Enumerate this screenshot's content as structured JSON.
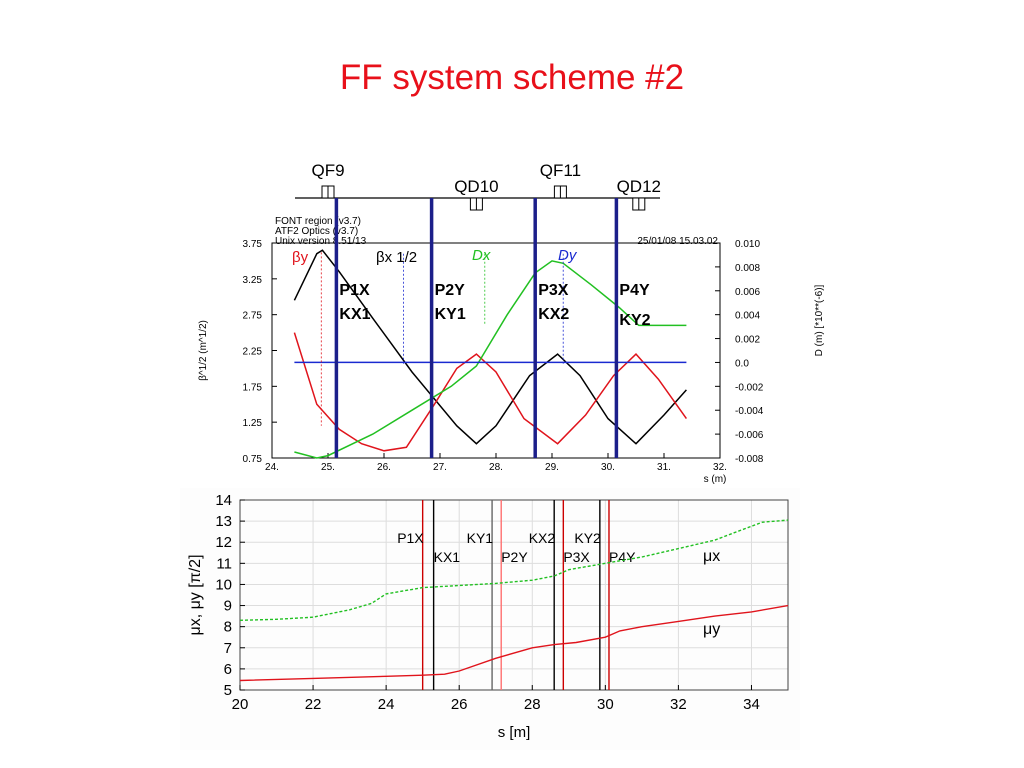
{
  "slide": {
    "title": "FF system scheme #2"
  },
  "chart_data": [
    {
      "type": "line",
      "magnets": [
        {
          "name": "QF9",
          "s": 25.0
        },
        {
          "name": "QD10",
          "s": 27.65
        },
        {
          "name": "QF11",
          "s": 29.15
        },
        {
          "name": "QD12",
          "s": 30.55
        }
      ],
      "header_lines": [
        "FONT region (v3.7)",
        "ATF2 Optics (v3.7)",
        "Unix version 8.51/13"
      ],
      "date_text": "25/01/08  15.03.02",
      "x_ticks": [
        "24.",
        "25.",
        "26.",
        "27.",
        "28.",
        "29.",
        "30.",
        "31.",
        "32."
      ],
      "xlim": [
        24,
        32
      ],
      "xlabel": "s (m)",
      "ylabel_left": "β^1/2 (m^1/2)",
      "y_left_ticks": [
        "0.75",
        "1.25",
        "1.75",
        "2.25",
        "2.75",
        "3.25",
        "3.75"
      ],
      "ylim_left": [
        0.75,
        3.75
      ],
      "ylabel_right": "D (m)  [*10**(-6)]",
      "y_right_ticks": [
        "-0.008",
        "-0.006",
        "-0.004",
        "-0.002",
        "0.0",
        "0.002",
        "0.004",
        "0.006",
        "0.008",
        "0.010"
      ],
      "ylim_right": [
        -0.008,
        0.01
      ],
      "legend": [
        {
          "label": "βy",
          "color": "#e0141c"
        },
        {
          "label": "βx 1/2",
          "color": "#000000"
        },
        {
          "label": "Dx",
          "color": "#22c022"
        },
        {
          "label": "Dy",
          "color": "#1a2ad0"
        }
      ],
      "bpm_lines": [
        {
          "s": 25.15,
          "labels": [
            "P1X",
            "KX1"
          ]
        },
        {
          "s": 26.85,
          "labels": [
            "P2Y",
            "KY1"
          ]
        },
        {
          "s": 28.7,
          "labels": [
            "P3X",
            "KX2"
          ]
        },
        {
          "s": 30.15,
          "labels": [
            "P4Y",
            "KY2"
          ]
        }
      ],
      "series": [
        {
          "name": "βx 1/2",
          "color": "#000000",
          "axis": "left",
          "x": [
            24.4,
            24.8,
            24.9,
            25.2,
            25.8,
            26.5,
            27.3,
            27.65,
            28.0,
            28.6,
            29.1,
            29.5,
            30.0,
            30.5,
            31.0,
            31.4
          ],
          "y": [
            2.95,
            3.6,
            3.65,
            3.35,
            2.7,
            1.95,
            1.2,
            0.95,
            1.2,
            1.9,
            2.2,
            1.9,
            1.3,
            0.95,
            1.35,
            1.7
          ]
        },
        {
          "name": "βy",
          "color": "#e0141c",
          "axis": "left",
          "x": [
            24.4,
            24.8,
            25.2,
            25.6,
            26.0,
            26.4,
            26.9,
            27.3,
            27.65,
            28.0,
            28.5,
            29.1,
            29.6,
            30.1,
            30.5,
            30.9,
            31.4
          ],
          "y": [
            2.5,
            1.5,
            1.15,
            0.95,
            0.85,
            0.9,
            1.5,
            2.0,
            2.2,
            1.95,
            1.3,
            0.95,
            1.35,
            1.9,
            2.2,
            1.85,
            1.3
          ]
        },
        {
          "name": "Dx",
          "color": "#22c022",
          "axis": "right",
          "x": [
            24.4,
            24.8,
            25.0,
            25.8,
            26.5,
            27.2,
            27.65,
            28.2,
            28.7,
            29.0,
            29.2,
            29.7,
            30.2,
            30.55,
            31.0,
            31.4
          ],
          "y": [
            -0.0075,
            -0.008,
            -0.0078,
            -0.006,
            -0.004,
            -0.002,
            -0.0003,
            0.004,
            0.0075,
            0.0085,
            0.0083,
            0.0065,
            0.0046,
            0.0031,
            0.0031,
            0.0031
          ]
        },
        {
          "name": "Dy",
          "color": "#1a2ad0",
          "axis": "right",
          "x": [
            24.4,
            31.4
          ],
          "y": [
            0.0,
            0.0
          ]
        }
      ]
    },
    {
      "type": "line",
      "xlabel": "s [m]",
      "ylabel": "μx, μy [π/2]",
      "xlim": [
        20,
        35
      ],
      "ylim": [
        5,
        14
      ],
      "x_ticks": [
        "20",
        "22",
        "24",
        "26",
        "28",
        "30",
        "32",
        "34"
      ],
      "y_ticks": [
        "5",
        "6",
        "7",
        "8",
        "9",
        "10",
        "11",
        "12",
        "13",
        "14"
      ],
      "vlines": [
        {
          "s": 25.0,
          "label": "P1X",
          "color": "#cc0000",
          "row": "top"
        },
        {
          "s": 25.3,
          "label": "KX1",
          "color": "#000000",
          "row": "bottom"
        },
        {
          "s": 26.9,
          "label": "KY1",
          "color": "#666666",
          "row": "top"
        },
        {
          "s": 27.15,
          "label": "P2Y",
          "color": "#ff7070",
          "row": "bottom"
        },
        {
          "s": 28.6,
          "label": "KX2",
          "color": "#000000",
          "row": "top"
        },
        {
          "s": 28.85,
          "label": "P3X",
          "color": "#cc0000",
          "row": "bottom"
        },
        {
          "s": 29.85,
          "label": "KY2",
          "color": "#000000",
          "row": "top"
        },
        {
          "s": 30.1,
          "label": "P4Y",
          "color": "#cc0000",
          "row": "bottom"
        }
      ],
      "series": [
        {
          "name": "μx",
          "color": "#22c022",
          "style": "dashed",
          "x": [
            20,
            21,
            22,
            23,
            23.6,
            24.0,
            25,
            26,
            27,
            28,
            28.6,
            29,
            30,
            31,
            32,
            33,
            33.6,
            34.3,
            35
          ],
          "y": [
            8.3,
            8.35,
            8.45,
            8.8,
            9.1,
            9.55,
            9.85,
            9.95,
            10.05,
            10.2,
            10.4,
            10.7,
            11.0,
            11.3,
            11.7,
            12.1,
            12.5,
            12.95,
            13.05
          ]
        },
        {
          "name": "μy",
          "color": "#e0141c",
          "style": "solid",
          "x": [
            20,
            22,
            24,
            25,
            25.6,
            26.0,
            27.0,
            28.0,
            28.6,
            29.2,
            30.0,
            30.4,
            31.0,
            32,
            33,
            34,
            35
          ],
          "y": [
            5.45,
            5.55,
            5.65,
            5.7,
            5.75,
            5.9,
            6.5,
            7.0,
            7.15,
            7.25,
            7.5,
            7.8,
            8.0,
            8.25,
            8.5,
            8.7,
            9.0
          ]
        }
      ]
    }
  ]
}
